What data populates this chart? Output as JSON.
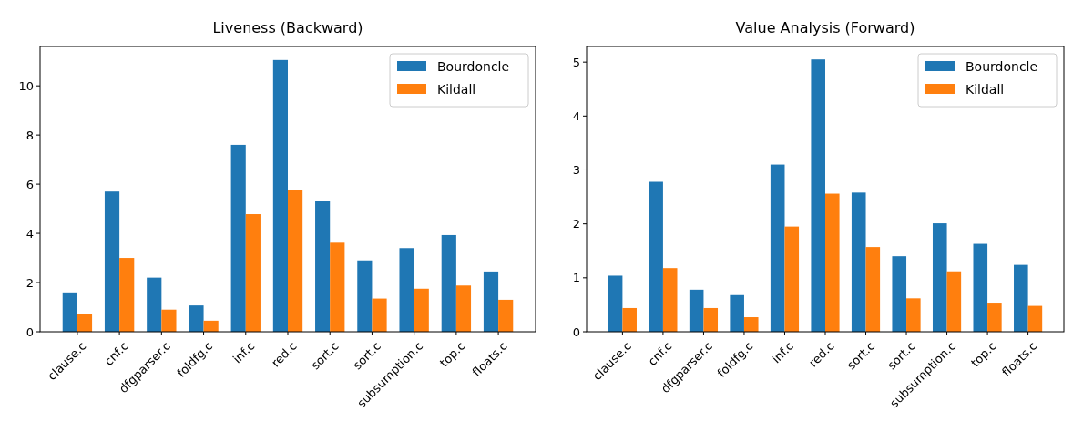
{
  "chart_data": [
    {
      "type": "bar",
      "title": "Liveness (Backward)",
      "categories": [
        "clause.c",
        "cnf.c",
        "dfgparser.c",
        "foldfg.c",
        "inf.c",
        "red.c",
        "sort.c",
        "sort.c",
        "subsumption.c",
        "top.c",
        "floats.c"
      ],
      "series": [
        {
          "name": "Bourdoncle",
          "color": "#1f77b4",
          "values": [
            1.6,
            5.7,
            2.2,
            1.07,
            7.6,
            11.05,
            5.3,
            2.9,
            3.4,
            3.93,
            2.45
          ]
        },
        {
          "name": "Kildall",
          "color": "#ff7f0e",
          "values": [
            0.72,
            3.0,
            0.9,
            0.45,
            4.78,
            5.75,
            3.62,
            1.35,
            1.75,
            1.88,
            1.3
          ]
        }
      ],
      "ylim": [
        0,
        11.6
      ],
      "yticks": [
        0,
        2,
        4,
        6,
        8,
        10
      ],
      "legend": "top right"
    },
    {
      "type": "bar",
      "title": "Value Analysis (Forward)",
      "categories": [
        "clause.c",
        "cnf.c",
        "dfgparser.c",
        "foldfg.c",
        "inf.c",
        "red.c",
        "sort.c",
        "sort.c",
        "subsumption.c",
        "top.c",
        "floats.c"
      ],
      "series": [
        {
          "name": "Bourdoncle",
          "color": "#1f77b4",
          "values": [
            1.04,
            2.78,
            0.78,
            0.68,
            3.1,
            5.05,
            2.58,
            1.4,
            2.01,
            1.63,
            1.24
          ]
        },
        {
          "name": "Kildall",
          "color": "#ff7f0e",
          "values": [
            0.44,
            1.18,
            0.44,
            0.27,
            1.95,
            2.56,
            1.57,
            0.62,
            1.12,
            0.54,
            0.48
          ]
        }
      ],
      "ylim": [
        0,
        5.29
      ],
      "yticks": [
        0,
        1,
        2,
        3,
        4,
        5
      ],
      "legend": "top right"
    }
  ]
}
